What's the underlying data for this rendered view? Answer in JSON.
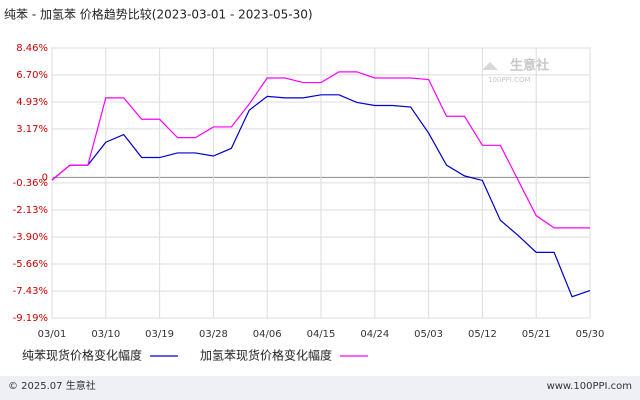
{
  "chart_data": {
    "type": "line",
    "title": "纯苯 - 加氢苯 价格趋势比较(2023-03-01 - 2023-05-30)",
    "categories": [
      "03/01",
      null,
      null,
      "03/10",
      null,
      null,
      "03/19",
      null,
      null,
      "03/28",
      null,
      null,
      "04/06",
      null,
      null,
      "04/15",
      null,
      null,
      "04/24",
      null,
      null,
      "05/03",
      null,
      null,
      "05/12",
      null,
      null,
      "05/21",
      null,
      null,
      "05/30"
    ],
    "series": [
      {
        "name": "纯苯现货价格变化幅度",
        "color": "#0000cc",
        "values": [
          -0.17,
          0.8,
          0.8,
          2.3,
          2.8,
          1.3,
          1.3,
          1.6,
          1.6,
          1.4,
          1.9,
          4.4,
          5.3,
          5.2,
          5.2,
          5.4,
          5.4,
          4.9,
          4.7,
          4.7,
          4.6,
          2.9,
          0.8,
          0.1,
          -0.2,
          -2.8,
          -3.8,
          -4.9,
          -4.9,
          -7.8,
          -7.4
        ]
      },
      {
        "name": "加氢苯现货价格变化幅度",
        "color": "#ff00ff",
        "values": [
          -0.17,
          0.8,
          0.8,
          5.2,
          5.2,
          3.8,
          3.8,
          2.6,
          2.6,
          3.3,
          3.3,
          4.8,
          6.5,
          6.5,
          6.2,
          6.2,
          6.9,
          6.9,
          6.5,
          6.5,
          6.5,
          6.4,
          4.0,
          4.0,
          2.1,
          2.1,
          -0.2,
          -2.5,
          -3.3,
          -3.3,
          -3.3
        ]
      }
    ],
    "ylim": [
      -9.19,
      8.46
    ],
    "yticks": [
      {
        "value": 8.46,
        "label": "8.46%"
      },
      {
        "value": 6.7,
        "label": "6.70%"
      },
      {
        "value": 4.93,
        "label": "4.93%"
      },
      {
        "value": 3.17,
        "label": "3.17%"
      },
      0,
      {
        "value": -0.36,
        "label": "-0.36%"
      },
      {
        "value": -2.13,
        "label": "-2.13%"
      },
      {
        "value": -3.9,
        "label": "-3.90%"
      },
      {
        "value": -5.66,
        "label": "-5.66%"
      },
      {
        "value": -7.43,
        "label": "-7.43%"
      },
      {
        "value": -9.19,
        "label": "-9.19%"
      }
    ],
    "grid": true,
    "watermark": "生意社",
    "watermark_url": "100PPI.COM",
    "footer_left": "© 2025.07 生意社",
    "footer_right": "www.100PPI.com"
  }
}
